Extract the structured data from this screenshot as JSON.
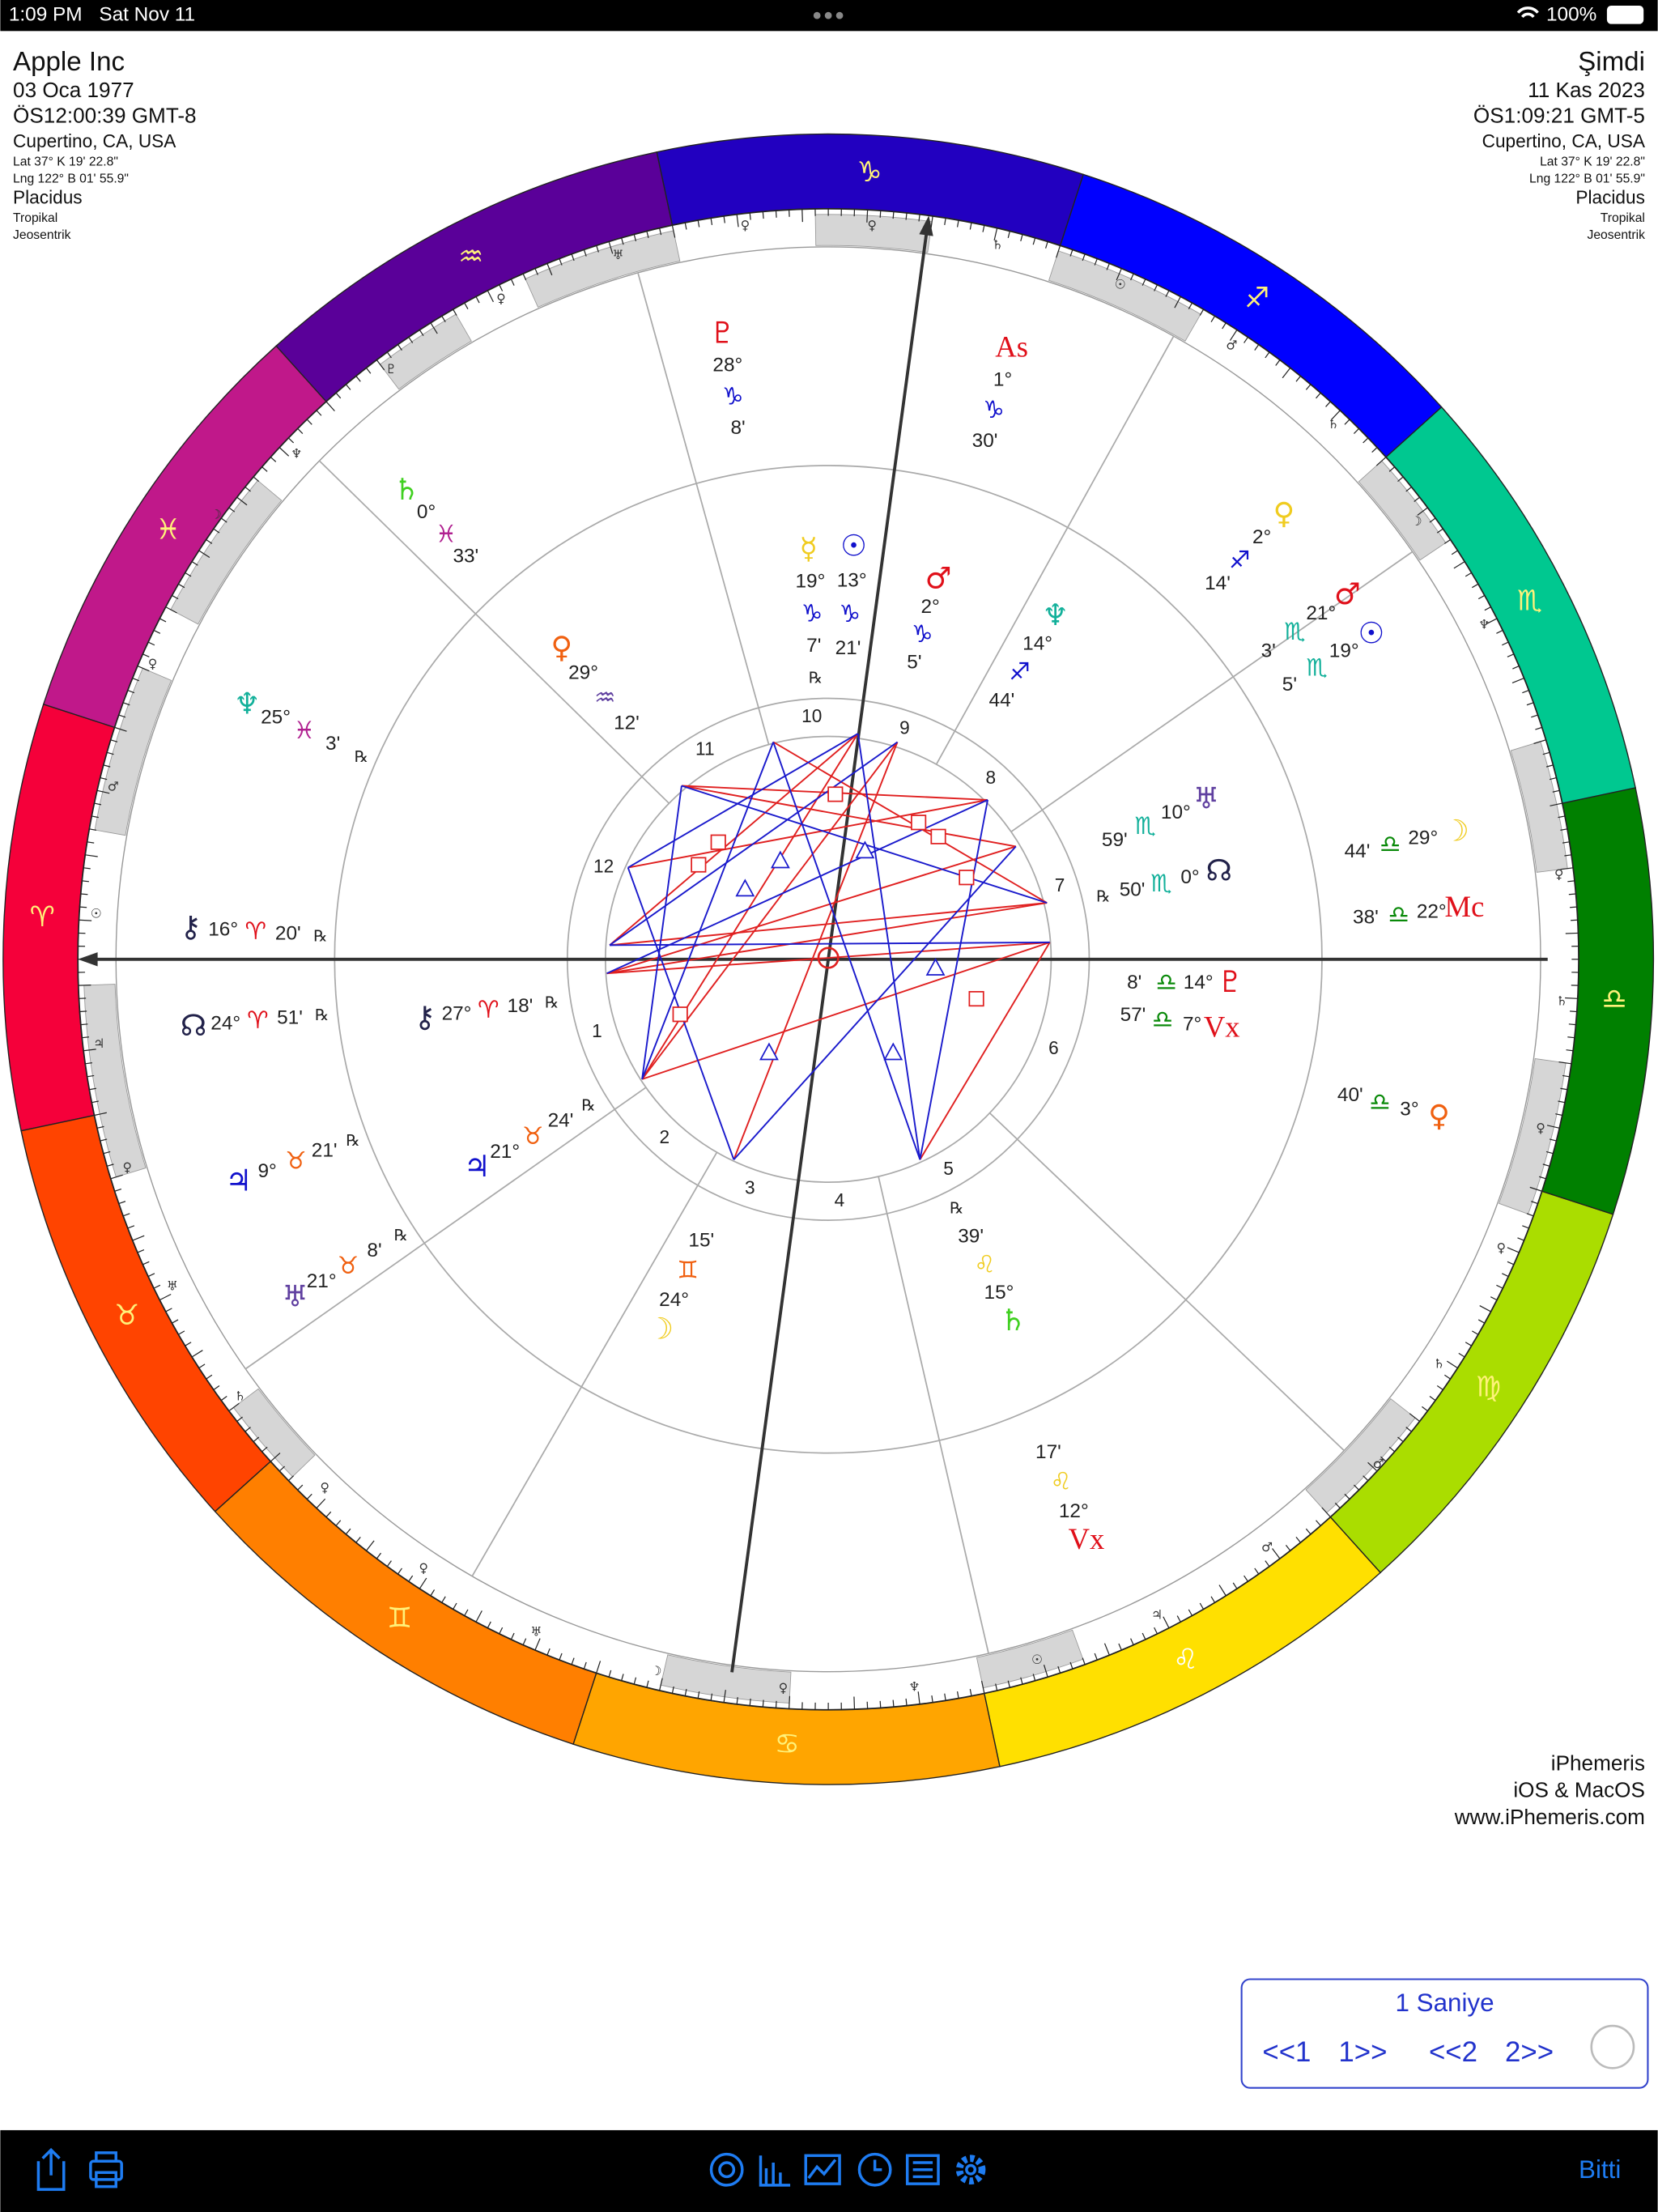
{
  "status_bar": {
    "time": "1:09 PM",
    "date": "Sat Nov 11",
    "battery": "100%"
  },
  "natal_info": {
    "name": "Apple Inc",
    "date": "03 Oca 1977",
    "time": "ÖS12:00:39 GMT-8",
    "location": "Cupertino, CA, USA",
    "latitude": "Lat 37° K 19' 22.8\"",
    "longitude": "Lng 122° B 01' 55.9\"",
    "house_system": "Placidus",
    "zodiac": "Tropikal",
    "perspective": "Jeosentrik"
  },
  "transit_info": {
    "name": "Şimdi",
    "date": "11 Kas 2023",
    "time": "ÖS1:09:21 GMT-5",
    "location": "Cupertino, CA, USA",
    "latitude": "Lat 37° K 19' 22.8\"",
    "longitude": "Lng 122° B 01' 55.9\"",
    "house_system": "Placidus",
    "zodiac": "Tropikal",
    "perspective": "Jeosentrik"
  },
  "zodiac_signs": [
    "♈",
    "♉",
    "♊",
    "♋",
    "♌",
    "♍",
    "♎",
    "♏",
    "♐",
    "♑",
    "♒",
    "♓"
  ],
  "house_numbers": [
    "1",
    "2",
    "3",
    "4",
    "5",
    "6",
    "7",
    "8",
    "9",
    "10",
    "11",
    "12"
  ],
  "ring_glyphs": [
    "♀",
    "♀",
    "♅",
    "♄",
    "♀",
    "☉",
    "♂",
    "♇",
    "♄",
    "♆",
    "☽",
    "☽",
    "♆",
    "♀",
    "♂",
    "☉",
    "♀",
    "♄",
    "♃",
    "♀",
    "♀",
    "♀",
    "♅",
    "♄",
    "♄",
    "♂",
    "♀",
    "♂",
    "♀",
    "♃",
    "♅",
    "☉",
    "☽",
    "♀",
    "♆"
  ],
  "outer_placements": [
    {
      "glyph": "♇",
      "degree": "28°",
      "sign": "♑",
      "minute": "8'"
    },
    {
      "glyph": "As",
      "degree": "1°",
      "sign": "♑",
      "minute": "30'"
    },
    {
      "glyph": "♀",
      "degree": "2°",
      "sign": "♐",
      "minute": "14'"
    },
    {
      "glyph": "♂",
      "degree": "21°",
      "sign": "♏",
      "minute": "3'"
    },
    {
      "glyph": "☉",
      "degree": "19°",
      "sign": "♏",
      "minute": "5'"
    },
    {
      "glyph": "☽",
      "degree": "29°",
      "sign": "♎",
      "minute": "44'"
    },
    {
      "glyph": "Mc",
      "degree": "22°",
      "sign": "♎",
      "minute": "38'"
    },
    {
      "glyph": "♀",
      "degree": "3°",
      "sign": "♎",
      "minute": "40'"
    },
    {
      "glyph": "☽",
      "degree": "24°",
      "sign": "♊",
      "minute": "15'"
    },
    {
      "glyph": "♄",
      "degree": "15°",
      "sign": "♌",
      "minute": "39'",
      "retro": "℞"
    },
    {
      "glyph": "Vx",
      "degree": "12°",
      "sign": "♌",
      "minute": "17'"
    },
    {
      "glyph": "♄",
      "degree": "0°",
      "sign": "♓",
      "minute": "33'"
    },
    {
      "glyph": "♆",
      "degree": "25°",
      "sign": "♓",
      "minute": "3'",
      "retro": "℞"
    },
    {
      "glyph": "⚷",
      "degree": "16°",
      "sign": "♈",
      "minute": "20'",
      "retro": "℞"
    },
    {
      "glyph": "☊",
      "degree": "24°",
      "sign": "♈",
      "minute": "51'",
      "retro": "℞"
    },
    {
      "glyph": "♃",
      "degree": "9°",
      "sign": "♉",
      "minute": "21'",
      "retro": "℞"
    },
    {
      "glyph": "♅",
      "degree": "21°",
      "sign": "♉",
      "minute": "8'",
      "retro": "℞"
    }
  ],
  "inner_placements": [
    {
      "glyph": "☿",
      "degree": "19°",
      "sign": "♑",
      "minute": "7'",
      "retro": "℞"
    },
    {
      "glyph": "☉",
      "degree": "13°",
      "sign": "♑",
      "minute": "21'"
    },
    {
      "glyph": "♂",
      "degree": "2°",
      "sign": "♑",
      "minute": "5'"
    },
    {
      "glyph": "♆",
      "degree": "14°",
      "sign": "♐",
      "minute": "44'"
    },
    {
      "glyph": "♅",
      "degree": "10°",
      "sign": "♏",
      "minute": "59'"
    },
    {
      "glyph": "☊",
      "degree": "0°",
      "sign": "♏",
      "minute": "50'",
      "retro": "℞"
    },
    {
      "glyph": "♇",
      "degree": "14°",
      "sign": "♎",
      "minute": "8'"
    },
    {
      "glyph": "Vx",
      "degree": "7°",
      "sign": "♎",
      "minute": "57'"
    },
    {
      "glyph": "♀",
      "degree": "29°",
      "sign": "♒",
      "minute": "12'"
    },
    {
      "glyph": "⚷",
      "degree": "27°",
      "sign": "♈",
      "minute": "18'",
      "retro": "℞"
    },
    {
      "glyph": "♃",
      "degree": "21°",
      "sign": "♉",
      "minute": "24'",
      "retro": "℞"
    }
  ],
  "credits": {
    "app": "iPhemeris",
    "platforms": "iOS & MacOS",
    "website": "www.iPhemeris.com"
  },
  "step_control": {
    "interval": "1 Saniye",
    "buttons": [
      "<<1",
      "1>>",
      "<<2",
      "2>>"
    ]
  },
  "toolbar": {
    "done": "Bitti"
  }
}
